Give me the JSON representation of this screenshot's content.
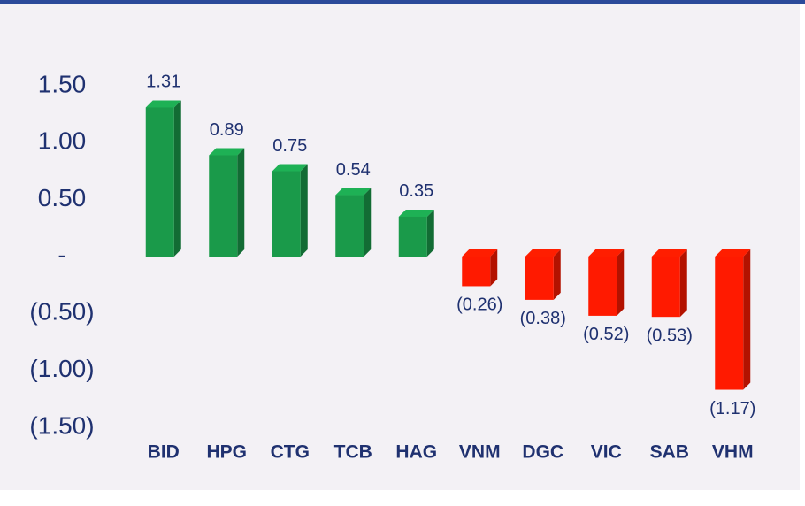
{
  "chart_data": {
    "type": "bar",
    "categories": [
      "BID",
      "HPG",
      "CTG",
      "TCB",
      "HAG",
      "VNM",
      "DGC",
      "VIC",
      "SAB",
      "VHM"
    ],
    "values": [
      1.31,
      0.89,
      0.75,
      0.54,
      0.35,
      -0.26,
      -0.38,
      -0.52,
      -0.53,
      -1.17
    ],
    "value_labels": [
      "1.31",
      "0.89",
      "0.75",
      "0.54",
      "0.35",
      "(0.26)",
      "(0.38)",
      "(0.52)",
      "(0.53)",
      "(1.17)"
    ],
    "colors": [
      "#1a9a4a",
      "#1a9a4a",
      "#1a9a4a",
      "#1a9a4a",
      "#1a9a4a",
      "#ff1a00",
      "#ff1a00",
      "#ff1a00",
      "#ff1a00",
      "#ff1a00"
    ],
    "ylim": [
      -1.5,
      1.5
    ],
    "yticks": [
      {
        "value": 1.5,
        "label": "1.50"
      },
      {
        "value": 1.0,
        "label": "1.00"
      },
      {
        "value": 0.5,
        "label": "0.50"
      },
      {
        "value": 0,
        "label": "-"
      },
      {
        "value": -0.5,
        "label": "(0.50)"
      },
      {
        "value": -1.0,
        "label": "(1.00)"
      },
      {
        "value": -1.5,
        "label": "(1.50)"
      }
    ],
    "grid": false
  }
}
